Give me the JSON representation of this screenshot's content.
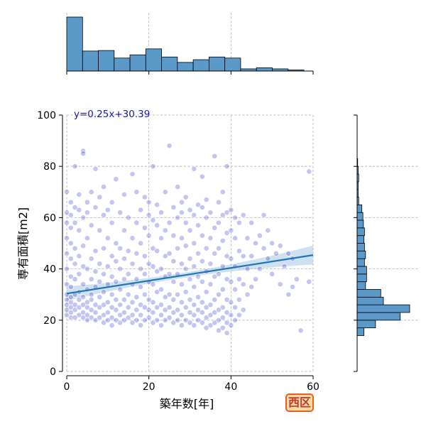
{
  "chart_data": {
    "type": "scatter",
    "xlabel": "築年数[年]",
    "ylabel": "専有面積[m2]",
    "xlim": [
      0,
      60
    ],
    "ylim": [
      0,
      100
    ],
    "xticks": [
      "0",
      "20",
      "40",
      "60"
    ],
    "yticks": [
      "0",
      "20",
      "40",
      "60",
      "80",
      "100"
    ],
    "regression": {
      "equation": "y=0.25x+30.39",
      "slope": 0.25,
      "intercept": 30.39,
      "x_range": [
        0,
        60
      ]
    },
    "grid": true,
    "point_color": "#2a2fc9",
    "line_color": "#1f77b4",
    "bar_color": "#5b9ac8",
    "region_badge": "西区",
    "x_histogram": {
      "bin_edges": [
        0,
        3.85,
        7.7,
        11.55,
        15.4,
        19.25,
        23.1,
        26.95,
        30.8,
        34.65,
        38.5,
        42.35,
        46.2,
        50.05,
        53.9,
        57.75,
        61.6
      ],
      "heights": [
        1.0,
        0.37,
        0.38,
        0.24,
        0.3,
        0.41,
        0.26,
        0.16,
        0.21,
        0.26,
        0.24,
        0.04,
        0.06,
        0.04,
        0.02,
        0.0
      ]
    },
    "y_histogram": {
      "bin_edges": [
        14,
        17,
        20,
        23,
        26,
        29,
        32,
        35,
        38,
        41,
        44,
        47,
        50,
        53,
        56,
        59,
        62,
        65,
        68,
        71,
        74,
        77,
        80,
        83
      ],
      "heights": [
        0.13,
        0.35,
        0.82,
        1.0,
        0.5,
        0.45,
        0.16,
        0.18,
        0.18,
        0.14,
        0.16,
        0.14,
        0.13,
        0.14,
        0.12,
        0.11,
        0.09,
        0.03,
        0.02,
        0.02,
        0.03,
        0.02,
        0.01
      ]
    },
    "points": [
      [
        0,
        22
      ],
      [
        0,
        24
      ],
      [
        0,
        26
      ],
      [
        0,
        28
      ],
      [
        0,
        30
      ],
      [
        0,
        34
      ],
      [
        0,
        40
      ],
      [
        0,
        46
      ],
      [
        0,
        52
      ],
      [
        0,
        58
      ],
      [
        0,
        62
      ],
      [
        0,
        70
      ],
      [
        1,
        21
      ],
      [
        1,
        23
      ],
      [
        1,
        25
      ],
      [
        1,
        27
      ],
      [
        1,
        29
      ],
      [
        1,
        33
      ],
      [
        1,
        37
      ],
      [
        1,
        44
      ],
      [
        1,
        50
      ],
      [
        1,
        56
      ],
      [
        1,
        61
      ],
      [
        1,
        66
      ],
      [
        2,
        21
      ],
      [
        2,
        24
      ],
      [
        2,
        26
      ],
      [
        2,
        30
      ],
      [
        2,
        36
      ],
      [
        2,
        42
      ],
      [
        2,
        48
      ],
      [
        2,
        58
      ],
      [
        2,
        64
      ],
      [
        2,
        80
      ],
      [
        3,
        22
      ],
      [
        3,
        25
      ],
      [
        3,
        28
      ],
      [
        3,
        31
      ],
      [
        3,
        38
      ],
      [
        3,
        45
      ],
      [
        3,
        55
      ],
      [
        3,
        63
      ],
      [
        3,
        69
      ],
      [
        4,
        21
      ],
      [
        4,
        23
      ],
      [
        4,
        26
      ],
      [
        4,
        29
      ],
      [
        4,
        34
      ],
      [
        4,
        41
      ],
      [
        4,
        49
      ],
      [
        4,
        60
      ],
      [
        4,
        86
      ],
      [
        4,
        85
      ],
      [
        5,
        20
      ],
      [
        5,
        22
      ],
      [
        5,
        25
      ],
      [
        5,
        27
      ],
      [
        5,
        32
      ],
      [
        5,
        40
      ],
      [
        5,
        52
      ],
      [
        5,
        62
      ],
      [
        5,
        66
      ],
      [
        6,
        21
      ],
      [
        6,
        24
      ],
      [
        6,
        28
      ],
      [
        6,
        30
      ],
      [
        6,
        36
      ],
      [
        6,
        44
      ],
      [
        6,
        57
      ],
      [
        6,
        70
      ],
      [
        7,
        20
      ],
      [
        7,
        23
      ],
      [
        7,
        26
      ],
      [
        7,
        33
      ],
      [
        7,
        39
      ],
      [
        7,
        47
      ],
      [
        7,
        64
      ],
      [
        7,
        79
      ],
      [
        8,
        21
      ],
      [
        8,
        25
      ],
      [
        8,
        29
      ],
      [
        8,
        35
      ],
      [
        8,
        42
      ],
      [
        8,
        55
      ],
      [
        8,
        68
      ],
      [
        9,
        19
      ],
      [
        9,
        22
      ],
      [
        9,
        26
      ],
      [
        9,
        31
      ],
      [
        9,
        38
      ],
      [
        9,
        48
      ],
      [
        9,
        61
      ],
      [
        9,
        72
      ],
      [
        10,
        20
      ],
      [
        10,
        23
      ],
      [
        10,
        27
      ],
      [
        10,
        34
      ],
      [
        10,
        41
      ],
      [
        10,
        52
      ],
      [
        10,
        63
      ],
      [
        11,
        18
      ],
      [
        11,
        21
      ],
      [
        11,
        25
      ],
      [
        11,
        30
      ],
      [
        11,
        37
      ],
      [
        11,
        45
      ],
      [
        11,
        58
      ],
      [
        11,
        66
      ],
      [
        12,
        20
      ],
      [
        12,
        24
      ],
      [
        12,
        28
      ],
      [
        12,
        35
      ],
      [
        12,
        43
      ],
      [
        12,
        50
      ],
      [
        12,
        75
      ],
      [
        13,
        19
      ],
      [
        13,
        22
      ],
      [
        13,
        26
      ],
      [
        13,
        32
      ],
      [
        13,
        40
      ],
      [
        13,
        48
      ],
      [
        13,
        62
      ],
      [
        14,
        20
      ],
      [
        14,
        23
      ],
      [
        14,
        28
      ],
      [
        14,
        36
      ],
      [
        14,
        44
      ],
      [
        14,
        55
      ],
      [
        14,
        69
      ],
      [
        15,
        21
      ],
      [
        15,
        25
      ],
      [
        15,
        30
      ],
      [
        15,
        38
      ],
      [
        15,
        47
      ],
      [
        15,
        60
      ],
      [
        16,
        19
      ],
      [
        16,
        22
      ],
      [
        16,
        27
      ],
      [
        16,
        34
      ],
      [
        16,
        42
      ],
      [
        16,
        52
      ],
      [
        16,
        77
      ],
      [
        17,
        20
      ],
      [
        17,
        24
      ],
      [
        17,
        29
      ],
      [
        17,
        36
      ],
      [
        17,
        46
      ],
      [
        17,
        58
      ],
      [
        17,
        70
      ],
      [
        18,
        18
      ],
      [
        18,
        22
      ],
      [
        18,
        26
      ],
      [
        18,
        33
      ],
      [
        18,
        40
      ],
      [
        18,
        50
      ],
      [
        18,
        63
      ],
      [
        19,
        20
      ],
      [
        19,
        25
      ],
      [
        19,
        30
      ],
      [
        19,
        38
      ],
      [
        19,
        45
      ],
      [
        19,
        56
      ],
      [
        19,
        68
      ],
      [
        20,
        21
      ],
      [
        20,
        24
      ],
      [
        20,
        28
      ],
      [
        20,
        35
      ],
      [
        20,
        42
      ],
      [
        20,
        53
      ],
      [
        20,
        61
      ],
      [
        20,
        66
      ],
      [
        21,
        19
      ],
      [
        21,
        23
      ],
      [
        21,
        27
      ],
      [
        21,
        34
      ],
      [
        21,
        41
      ],
      [
        21,
        48
      ],
      [
        21,
        59
      ],
      [
        21,
        80
      ],
      [
        22,
        20
      ],
      [
        22,
        25
      ],
      [
        22,
        31
      ],
      [
        22,
        39
      ],
      [
        22,
        47
      ],
      [
        22,
        57
      ],
      [
        22,
        65
      ],
      [
        23,
        18
      ],
      [
        23,
        22
      ],
      [
        23,
        26
      ],
      [
        23,
        32
      ],
      [
        23,
        40
      ],
      [
        23,
        52
      ],
      [
        23,
        62
      ],
      [
        24,
        20
      ],
      [
        24,
        24
      ],
      [
        24,
        29
      ],
      [
        24,
        37
      ],
      [
        24,
        45
      ],
      [
        24,
        55
      ],
      [
        24,
        70
      ],
      [
        25,
        21
      ],
      [
        25,
        25
      ],
      [
        25,
        30
      ],
      [
        25,
        38
      ],
      [
        25,
        46
      ],
      [
        25,
        58
      ],
      [
        25,
        88
      ],
      [
        26,
        19
      ],
      [
        26,
        23
      ],
      [
        26,
        28
      ],
      [
        26,
        35
      ],
      [
        26,
        43
      ],
      [
        26,
        53
      ],
      [
        26,
        64
      ],
      [
        27,
        20
      ],
      [
        27,
        24
      ],
      [
        27,
        30
      ],
      [
        27,
        38
      ],
      [
        27,
        48
      ],
      [
        27,
        60
      ],
      [
        27,
        72
      ],
      [
        28,
        18
      ],
      [
        28,
        22
      ],
      [
        28,
        27
      ],
      [
        28,
        34
      ],
      [
        28,
        42
      ],
      [
        28,
        52
      ],
      [
        28,
        62
      ],
      [
        28,
        66
      ],
      [
        29,
        20
      ],
      [
        29,
        25
      ],
      [
        29,
        31
      ],
      [
        29,
        40
      ],
      [
        29,
        49
      ],
      [
        29,
        58
      ],
      [
        29,
        68
      ],
      [
        30,
        19
      ],
      [
        30,
        23
      ],
      [
        30,
        28
      ],
      [
        30,
        36
      ],
      [
        30,
        44
      ],
      [
        30,
        55
      ],
      [
        30,
        63
      ],
      [
        31,
        18
      ],
      [
        31,
        22
      ],
      [
        31,
        26
      ],
      [
        31,
        33
      ],
      [
        31,
        41
      ],
      [
        31,
        50
      ],
      [
        31,
        61
      ],
      [
        31,
        79
      ],
      [
        32,
        20
      ],
      [
        32,
        24
      ],
      [
        32,
        29
      ],
      [
        32,
        37
      ],
      [
        32,
        46
      ],
      [
        32,
        57
      ],
      [
        32,
        65
      ],
      [
        33,
        19
      ],
      [
        33,
        23
      ],
      [
        33,
        27
      ],
      [
        33,
        35
      ],
      [
        33,
        43
      ],
      [
        33,
        53
      ],
      [
        33,
        64
      ],
      [
        33,
        76
      ],
      [
        34,
        17
      ],
      [
        34,
        21
      ],
      [
        34,
        25
      ],
      [
        34,
        31
      ],
      [
        34,
        39
      ],
      [
        34,
        48
      ],
      [
        34,
        60
      ],
      [
        34,
        67
      ],
      [
        35,
        18
      ],
      [
        35,
        22
      ],
      [
        35,
        26
      ],
      [
        35,
        34
      ],
      [
        35,
        42
      ],
      [
        35,
        52
      ],
      [
        35,
        62
      ],
      [
        36,
        19
      ],
      [
        36,
        23
      ],
      [
        36,
        28
      ],
      [
        36,
        37
      ],
      [
        36,
        46
      ],
      [
        36,
        56
      ],
      [
        36,
        84
      ],
      [
        37,
        16
      ],
      [
        37,
        20
      ],
      [
        37,
        24
      ],
      [
        37,
        30
      ],
      [
        37,
        38
      ],
      [
        37,
        48
      ],
      [
        37,
        58
      ],
      [
        37,
        66
      ],
      [
        38,
        17
      ],
      [
        38,
        21
      ],
      [
        38,
        25
      ],
      [
        38,
        32
      ],
      [
        38,
        41
      ],
      [
        38,
        51
      ],
      [
        38,
        61
      ],
      [
        38,
        70
      ],
      [
        39,
        15
      ],
      [
        39,
        19
      ],
      [
        39,
        23
      ],
      [
        39,
        28
      ],
      [
        39,
        36
      ],
      [
        39,
        45
      ],
      [
        39,
        54
      ],
      [
        39,
        62
      ],
      [
        39,
        80
      ],
      [
        40,
        18
      ],
      [
        40,
        22
      ],
      [
        40,
        27
      ],
      [
        40,
        35
      ],
      [
        40,
        44
      ],
      [
        40,
        55
      ],
      [
        40,
        63
      ],
      [
        41,
        20
      ],
      [
        41,
        25
      ],
      [
        41,
        32
      ],
      [
        41,
        41
      ],
      [
        41,
        52
      ],
      [
        41,
        60
      ],
      [
        42,
        22
      ],
      [
        42,
        28
      ],
      [
        42,
        36
      ],
      [
        42,
        47
      ],
      [
        42,
        58
      ],
      [
        43,
        24
      ],
      [
        43,
        34
      ],
      [
        43,
        45
      ],
      [
        43,
        61
      ],
      [
        44,
        30
      ],
      [
        44,
        40
      ],
      [
        44,
        52
      ],
      [
        45,
        33
      ],
      [
        45,
        45
      ],
      [
        45,
        58
      ],
      [
        46,
        36
      ],
      [
        46,
        50
      ],
      [
        47,
        40
      ],
      [
        47,
        53
      ],
      [
        48,
        48
      ],
      [
        48,
        61
      ],
      [
        49,
        44
      ],
      [
        49,
        55
      ],
      [
        50,
        38
      ],
      [
        50,
        50
      ],
      [
        51,
        46
      ],
      [
        52,
        34
      ],
      [
        52,
        49
      ],
      [
        53,
        41
      ],
      [
        54,
        30
      ],
      [
        54,
        46
      ],
      [
        55,
        33
      ],
      [
        55,
        44
      ],
      [
        56,
        36
      ],
      [
        57,
        16
      ],
      [
        59,
        35
      ],
      [
        59,
        78
      ]
    ]
  }
}
